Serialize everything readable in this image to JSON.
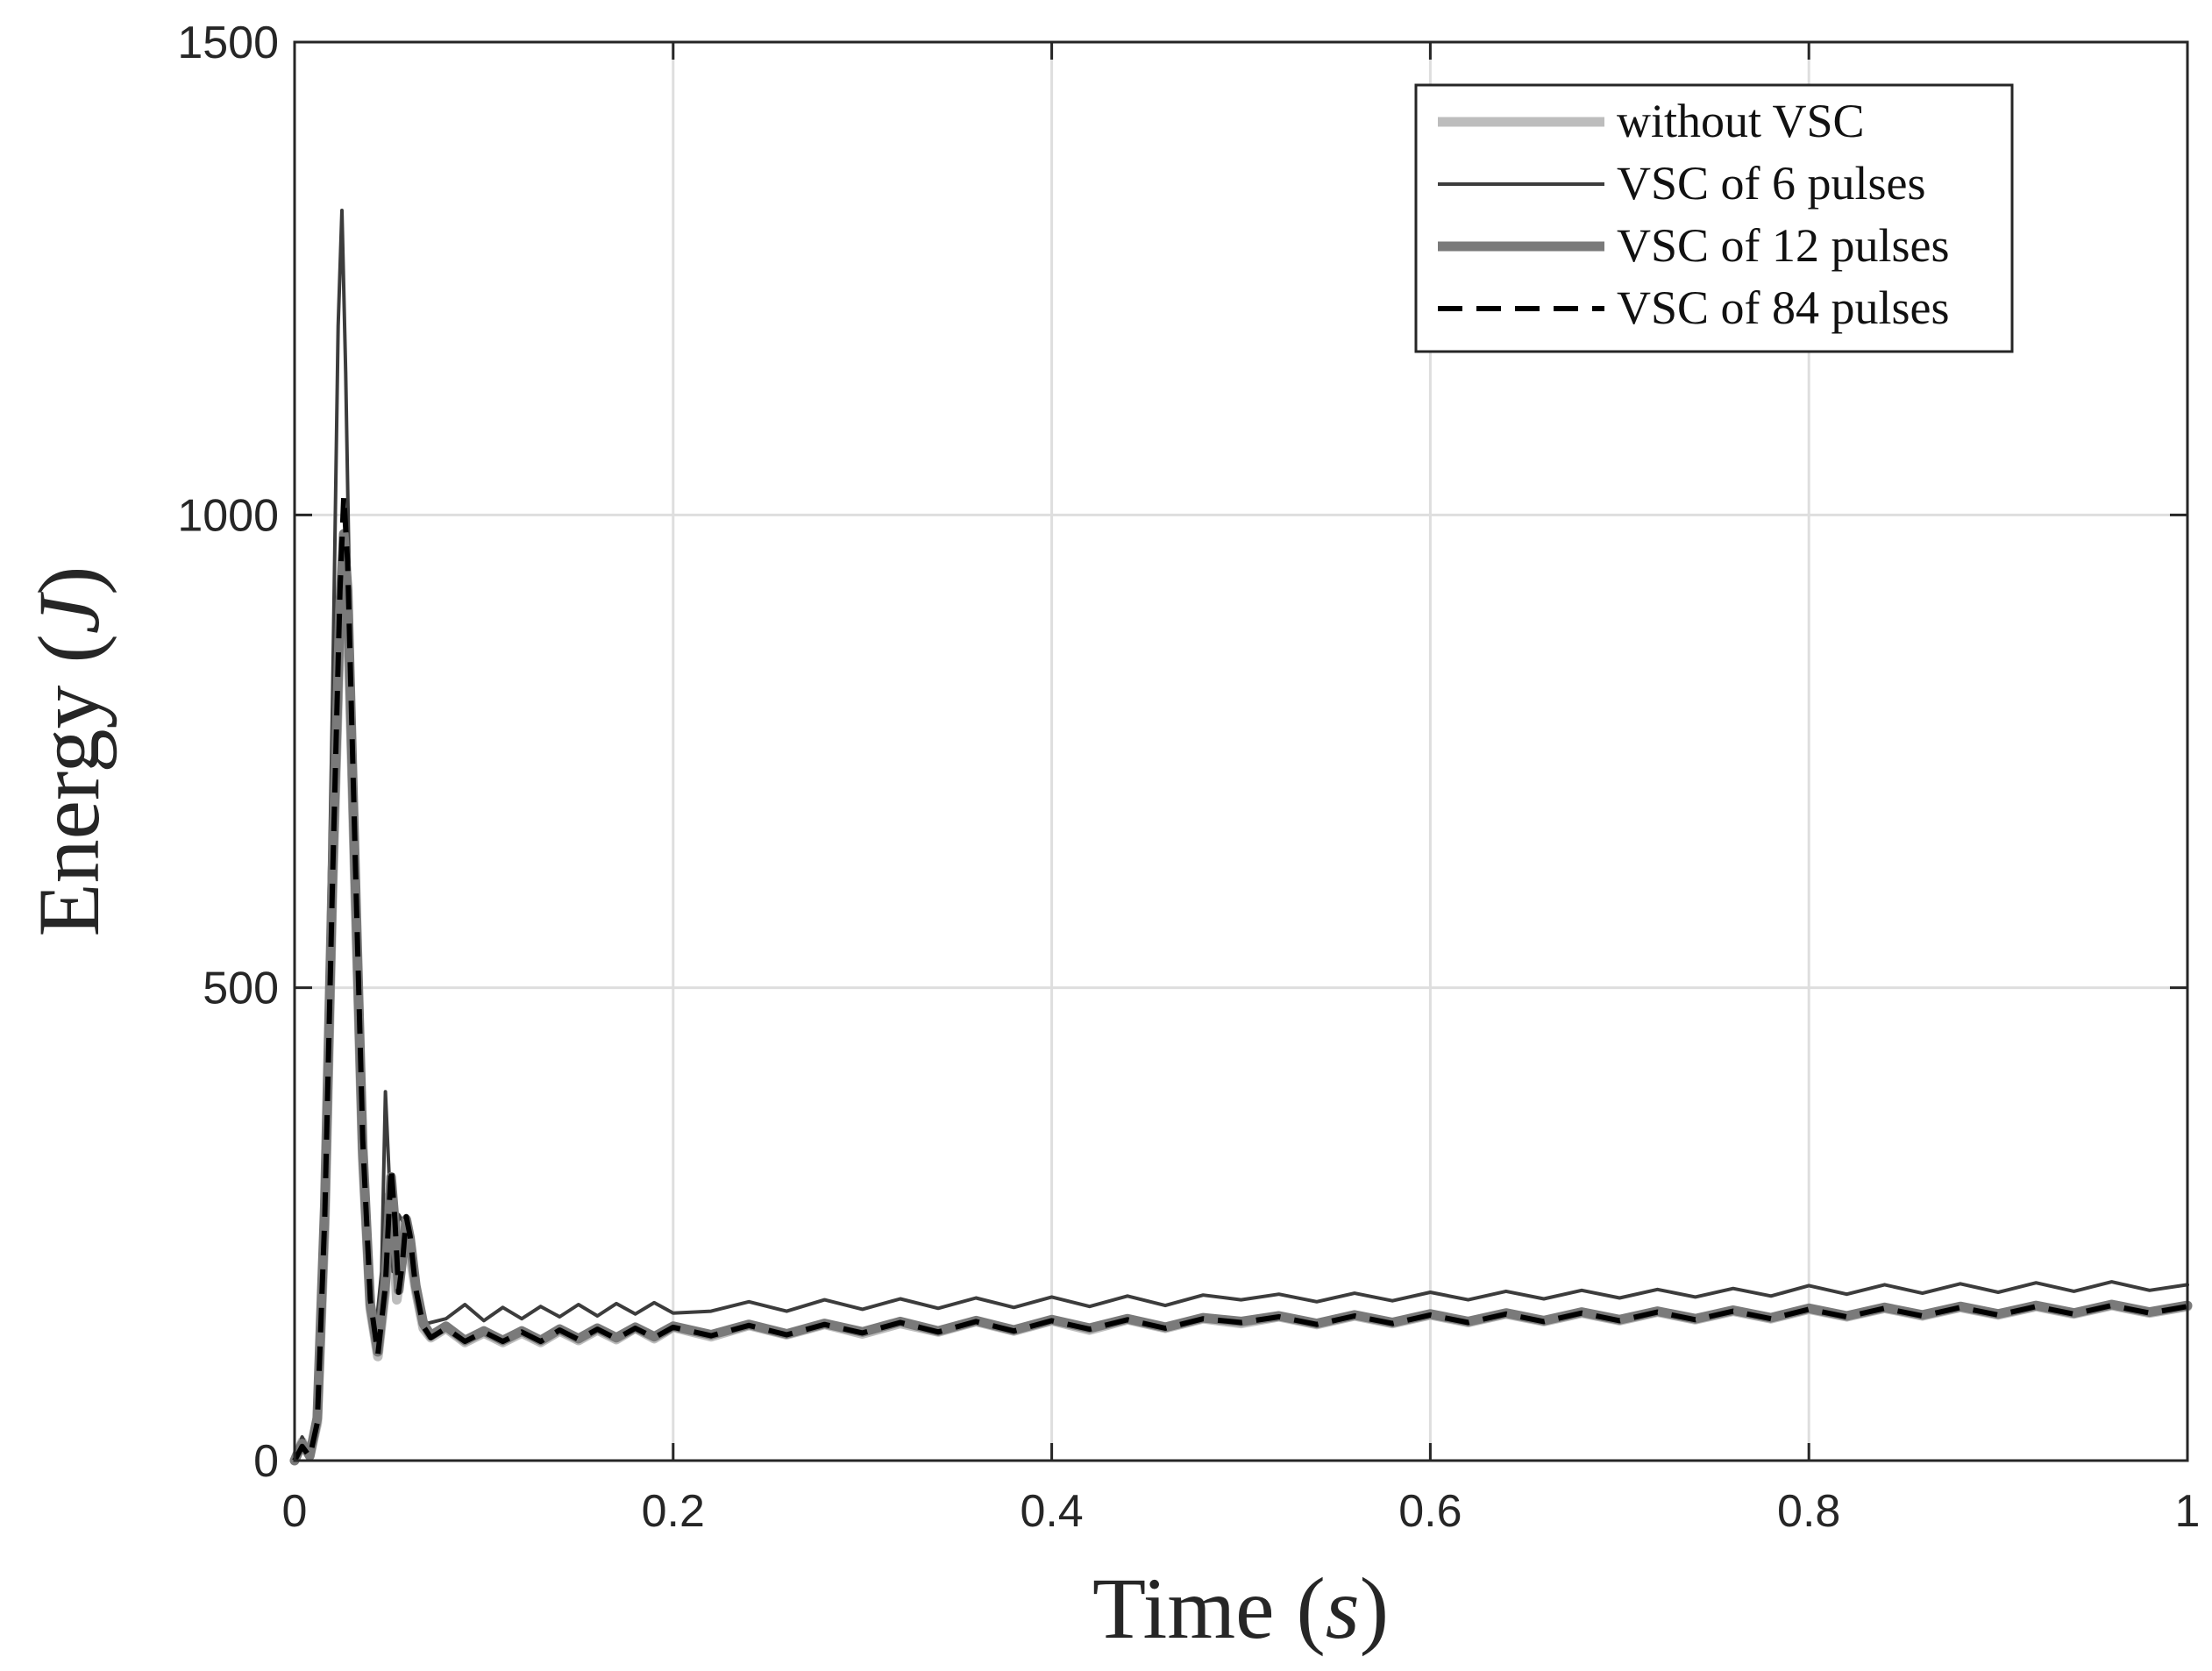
{
  "chart_data": {
    "type": "line",
    "title": "",
    "xlabel": "Time (s)",
    "xlabel_parts": {
      "text": "Time (",
      "symbol": "s",
      "close": ")"
    },
    "ylabel": "Energy (J)",
    "ylabel_parts": {
      "text": "Energy (",
      "symbol": "J",
      "close": ")"
    },
    "xlim": [
      0,
      1
    ],
    "ylim": [
      0,
      1500
    ],
    "xticks": [
      0,
      0.2,
      0.4,
      0.6,
      0.8,
      1
    ],
    "xtick_labels": [
      "0",
      "0.2",
      "0.4",
      "0.6",
      "0.8",
      "1"
    ],
    "yticks": [
      0,
      500,
      1000,
      1500
    ],
    "ytick_labels": [
      "0",
      "500",
      "1000",
      "1500"
    ],
    "grid": true,
    "legend_position": "top-right",
    "series": [
      {
        "name": "without VSC",
        "color": "#bdbdbd",
        "style": "solid",
        "weight": "thick",
        "points": [
          [
            0,
            0
          ],
          [
            0.004,
            20
          ],
          [
            0.008,
            5
          ],
          [
            0.012,
            40
          ],
          [
            0.016,
            250
          ],
          [
            0.02,
            600
          ],
          [
            0.024,
            880
          ],
          [
            0.026,
            960
          ],
          [
            0.028,
            900
          ],
          [
            0.032,
            600
          ],
          [
            0.036,
            320
          ],
          [
            0.04,
            160
          ],
          [
            0.044,
            110
          ],
          [
            0.048,
            180
          ],
          [
            0.05,
            280
          ],
          [
            0.052,
            240
          ],
          [
            0.054,
            170
          ],
          [
            0.056,
            200
          ],
          [
            0.058,
            250
          ],
          [
            0.06,
            230
          ],
          [
            0.064,
            180
          ],
          [
            0.068,
            140
          ],
          [
            0.072,
            130
          ],
          [
            0.08,
            140
          ],
          [
            0.09,
            125
          ],
          [
            0.1,
            135
          ],
          [
            0.11,
            125
          ],
          [
            0.12,
            135
          ],
          [
            0.13,
            125
          ],
          [
            0.14,
            137
          ],
          [
            0.15,
            127
          ],
          [
            0.16,
            138
          ],
          [
            0.17,
            128
          ],
          [
            0.18,
            140
          ],
          [
            0.19,
            129
          ],
          [
            0.2,
            141
          ],
          [
            0.22,
            131
          ],
          [
            0.24,
            143
          ],
          [
            0.26,
            133
          ],
          [
            0.28,
            144
          ],
          [
            0.3,
            134
          ],
          [
            0.32,
            145
          ],
          [
            0.34,
            136
          ],
          [
            0.36,
            147
          ],
          [
            0.38,
            137
          ],
          [
            0.4,
            148
          ],
          [
            0.42,
            138
          ],
          [
            0.44,
            149
          ],
          [
            0.46,
            140
          ],
          [
            0.48,
            150
          ],
          [
            0.5,
            145
          ],
          [
            0.52,
            152
          ],
          [
            0.54,
            144
          ],
          [
            0.56,
            153
          ],
          [
            0.58,
            145
          ],
          [
            0.6,
            154
          ],
          [
            0.62,
            146
          ],
          [
            0.64,
            155
          ],
          [
            0.66,
            147
          ],
          [
            0.68,
            156
          ],
          [
            0.7,
            148
          ],
          [
            0.72,
            157
          ],
          [
            0.74,
            149
          ],
          [
            0.76,
            158
          ],
          [
            0.78,
            150
          ],
          [
            0.8,
            160
          ],
          [
            0.82,
            152
          ],
          [
            0.84,
            161
          ],
          [
            0.86,
            153
          ],
          [
            0.88,
            162
          ],
          [
            0.9,
            154
          ],
          [
            0.92,
            163
          ],
          [
            0.94,
            155
          ],
          [
            0.96,
            164
          ],
          [
            0.98,
            156
          ],
          [
            1.0,
            163
          ]
        ]
      },
      {
        "name": "VSC of 6 pulses",
        "color": "#3c3c3c",
        "style": "solid",
        "weight": "thin",
        "points": [
          [
            0,
            0
          ],
          [
            0.004,
            25
          ],
          [
            0.008,
            8
          ],
          [
            0.012,
            60
          ],
          [
            0.016,
            350
          ],
          [
            0.02,
            800
          ],
          [
            0.023,
            1200
          ],
          [
            0.025,
            1322
          ],
          [
            0.027,
            1150
          ],
          [
            0.03,
            800
          ],
          [
            0.034,
            450
          ],
          [
            0.038,
            220
          ],
          [
            0.042,
            120
          ],
          [
            0.046,
            200
          ],
          [
            0.048,
            390
          ],
          [
            0.05,
            300
          ],
          [
            0.052,
            200
          ],
          [
            0.055,
            260
          ],
          [
            0.058,
            250
          ],
          [
            0.062,
            200
          ],
          [
            0.066,
            160
          ],
          [
            0.07,
            145
          ],
          [
            0.08,
            150
          ],
          [
            0.09,
            165
          ],
          [
            0.1,
            148
          ],
          [
            0.11,
            162
          ],
          [
            0.12,
            150
          ],
          [
            0.13,
            163
          ],
          [
            0.14,
            152
          ],
          [
            0.15,
            165
          ],
          [
            0.16,
            153
          ],
          [
            0.17,
            166
          ],
          [
            0.18,
            155
          ],
          [
            0.19,
            167
          ],
          [
            0.2,
            156
          ],
          [
            0.22,
            158
          ],
          [
            0.24,
            168
          ],
          [
            0.26,
            158
          ],
          [
            0.28,
            170
          ],
          [
            0.3,
            160
          ],
          [
            0.32,
            171
          ],
          [
            0.34,
            161
          ],
          [
            0.36,
            172
          ],
          [
            0.38,
            162
          ],
          [
            0.4,
            173
          ],
          [
            0.42,
            163
          ],
          [
            0.44,
            174
          ],
          [
            0.46,
            164
          ],
          [
            0.48,
            175
          ],
          [
            0.5,
            170
          ],
          [
            0.52,
            176
          ],
          [
            0.54,
            168
          ],
          [
            0.56,
            177
          ],
          [
            0.58,
            169
          ],
          [
            0.6,
            178
          ],
          [
            0.62,
            170
          ],
          [
            0.64,
            179
          ],
          [
            0.66,
            171
          ],
          [
            0.68,
            180
          ],
          [
            0.7,
            172
          ],
          [
            0.72,
            181
          ],
          [
            0.74,
            173
          ],
          [
            0.76,
            182
          ],
          [
            0.78,
            174
          ],
          [
            0.8,
            185
          ],
          [
            0.82,
            176
          ],
          [
            0.84,
            186
          ],
          [
            0.86,
            177
          ],
          [
            0.88,
            187
          ],
          [
            0.9,
            178
          ],
          [
            0.92,
            188
          ],
          [
            0.94,
            179
          ],
          [
            0.96,
            189
          ],
          [
            0.98,
            180
          ],
          [
            1.0,
            186
          ]
        ]
      },
      {
        "name": "VSC of 12 pulses",
        "color": "#7a7a7a",
        "style": "solid",
        "weight": "thick",
        "points": [
          [
            0,
            0
          ],
          [
            0.004,
            18
          ],
          [
            0.008,
            5
          ],
          [
            0.012,
            45
          ],
          [
            0.016,
            270
          ],
          [
            0.02,
            620
          ],
          [
            0.024,
            900
          ],
          [
            0.026,
            980
          ],
          [
            0.028,
            920
          ],
          [
            0.032,
            620
          ],
          [
            0.036,
            330
          ],
          [
            0.04,
            165
          ],
          [
            0.044,
            115
          ],
          [
            0.048,
            190
          ],
          [
            0.051,
            300
          ],
          [
            0.053,
            250
          ],
          [
            0.055,
            180
          ],
          [
            0.057,
            215
          ],
          [
            0.059,
            255
          ],
          [
            0.061,
            235
          ],
          [
            0.064,
            185
          ],
          [
            0.068,
            145
          ],
          [
            0.072,
            132
          ],
          [
            0.08,
            142
          ],
          [
            0.09,
            127
          ],
          [
            0.1,
            137
          ],
          [
            0.11,
            127
          ],
          [
            0.12,
            137
          ],
          [
            0.13,
            127
          ],
          [
            0.14,
            139
          ],
          [
            0.15,
            129
          ],
          [
            0.16,
            140
          ],
          [
            0.17,
            130
          ],
          [
            0.18,
            141
          ],
          [
            0.19,
            131
          ],
          [
            0.2,
            142
          ],
          [
            0.22,
            133
          ],
          [
            0.24,
            144
          ],
          [
            0.26,
            134
          ],
          [
            0.28,
            145
          ],
          [
            0.3,
            136
          ],
          [
            0.32,
            147
          ],
          [
            0.34,
            137
          ],
          [
            0.36,
            148
          ],
          [
            0.38,
            138
          ],
          [
            0.4,
            149
          ],
          [
            0.42,
            140
          ],
          [
            0.44,
            150
          ],
          [
            0.46,
            141
          ],
          [
            0.48,
            151
          ],
          [
            0.5,
            147
          ],
          [
            0.52,
            153
          ],
          [
            0.54,
            145
          ],
          [
            0.56,
            154
          ],
          [
            0.58,
            146
          ],
          [
            0.6,
            155
          ],
          [
            0.62,
            147
          ],
          [
            0.64,
            156
          ],
          [
            0.66,
            148
          ],
          [
            0.68,
            157
          ],
          [
            0.7,
            149
          ],
          [
            0.72,
            158
          ],
          [
            0.74,
            150
          ],
          [
            0.76,
            159
          ],
          [
            0.78,
            151
          ],
          [
            0.8,
            161
          ],
          [
            0.82,
            153
          ],
          [
            0.84,
            162
          ],
          [
            0.86,
            154
          ],
          [
            0.88,
            163
          ],
          [
            0.9,
            155
          ],
          [
            0.92,
            164
          ],
          [
            0.94,
            156
          ],
          [
            0.96,
            165
          ],
          [
            0.98,
            157
          ],
          [
            1.0,
            164
          ]
        ]
      },
      {
        "name": "VSC of 84 pulses",
        "color": "#000000",
        "style": "dashed",
        "weight": "medium",
        "points": [
          [
            0,
            0
          ],
          [
            0.004,
            15
          ],
          [
            0.008,
            4
          ],
          [
            0.012,
            40
          ],
          [
            0.016,
            260
          ],
          [
            0.02,
            610
          ],
          [
            0.024,
            920
          ],
          [
            0.026,
            1020
          ],
          [
            0.028,
            950
          ],
          [
            0.032,
            640
          ],
          [
            0.036,
            340
          ],
          [
            0.04,
            170
          ],
          [
            0.044,
            112
          ],
          [
            0.048,
            185
          ],
          [
            0.051,
            310
          ],
          [
            0.053,
            255
          ],
          [
            0.055,
            178
          ],
          [
            0.057,
            210
          ],
          [
            0.059,
            258
          ],
          [
            0.061,
            238
          ],
          [
            0.064,
            182
          ],
          [
            0.068,
            142
          ],
          [
            0.072,
            130
          ],
          [
            0.08,
            140
          ],
          [
            0.09,
            126
          ],
          [
            0.1,
            136
          ],
          [
            0.11,
            126
          ],
          [
            0.12,
            136
          ],
          [
            0.13,
            126
          ],
          [
            0.14,
            138
          ],
          [
            0.15,
            128
          ],
          [
            0.16,
            139
          ],
          [
            0.17,
            129
          ],
          [
            0.18,
            140
          ],
          [
            0.19,
            130
          ],
          [
            0.2,
            141
          ],
          [
            0.22,
            132
          ],
          [
            0.24,
            143
          ],
          [
            0.26,
            133
          ],
          [
            0.28,
            144
          ],
          [
            0.3,
            135
          ],
          [
            0.32,
            146
          ],
          [
            0.34,
            136
          ],
          [
            0.36,
            147
          ],
          [
            0.38,
            137
          ],
          [
            0.4,
            148
          ],
          [
            0.42,
            139
          ],
          [
            0.44,
            149
          ],
          [
            0.46,
            140
          ],
          [
            0.48,
            150
          ],
          [
            0.5,
            146
          ],
          [
            0.52,
            152
          ],
          [
            0.54,
            144
          ],
          [
            0.56,
            153
          ],
          [
            0.58,
            145
          ],
          [
            0.6,
            154
          ],
          [
            0.62,
            146
          ],
          [
            0.64,
            155
          ],
          [
            0.66,
            147
          ],
          [
            0.68,
            156
          ],
          [
            0.7,
            148
          ],
          [
            0.72,
            157
          ],
          [
            0.74,
            149
          ],
          [
            0.76,
            158
          ],
          [
            0.78,
            150
          ],
          [
            0.8,
            160
          ],
          [
            0.82,
            152
          ],
          [
            0.84,
            161
          ],
          [
            0.86,
            153
          ],
          [
            0.88,
            162
          ],
          [
            0.9,
            154
          ],
          [
            0.92,
            163
          ],
          [
            0.94,
            155
          ],
          [
            0.96,
            164
          ],
          [
            0.98,
            156
          ],
          [
            1.0,
            163
          ]
        ]
      }
    ]
  }
}
